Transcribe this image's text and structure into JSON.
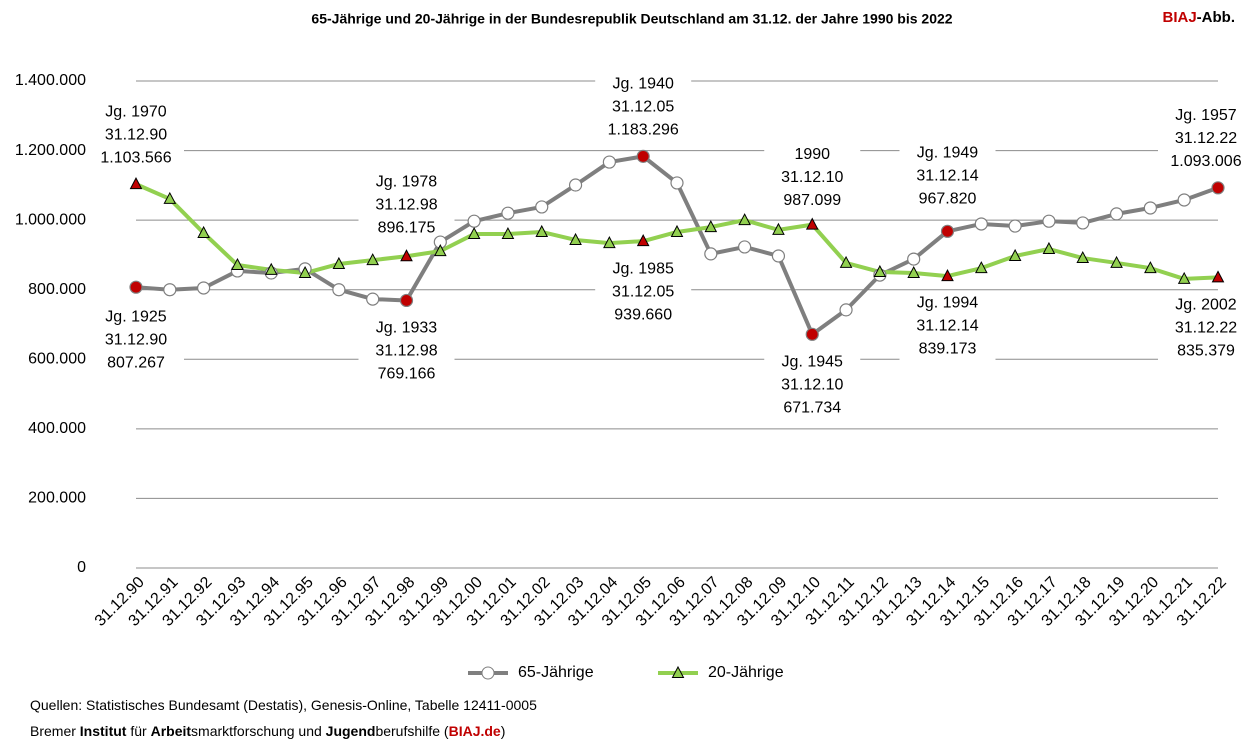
{
  "chart_data": {
    "type": "line",
    "title": "65-Jährige und 20-Jährige in der Bundesrepublik Deutschland am 31.12. der Jahre 1990 bis 2022",
    "logo": [
      {
        "text": "BIAJ",
        "color": "#c00000"
      },
      {
        "text": "-Abb.",
        "color": "#000000"
      }
    ],
    "categories": [
      "31.12.90",
      "31.12.91",
      "31.12.92",
      "31.12.93",
      "31.12.94",
      "31.12.95",
      "31.12.96",
      "31.12.97",
      "31.12.98",
      "31.12.99",
      "31.12.00",
      "31.12.01",
      "31.12.02",
      "31.12.03",
      "31.12.04",
      "31.12.05",
      "31.12.06",
      "31.12.07",
      "31.12.08",
      "31.12.09",
      "31.12.10",
      "31.12.11",
      "31.12.12",
      "31.12.13",
      "31.12.14",
      "31.12.15",
      "31.12.16",
      "31.12.17",
      "31.12.18",
      "31.12.19",
      "31.12.20",
      "31.12.21",
      "31.12.22"
    ],
    "series": [
      {
        "name": "65-Jährige",
        "color": "#7f7f7f",
        "marker": "circle",
        "values": [
          807267,
          800000,
          805000,
          854000,
          848000,
          860000,
          800000,
          773000,
          769166,
          937000,
          997000,
          1020000,
          1038000,
          1101000,
          1167000,
          1183296,
          1107000,
          903000,
          923000,
          897000,
          671734,
          742000,
          842000,
          888000,
          967820,
          989000,
          983000,
          997000,
          992000,
          1018000,
          1035000,
          1058000,
          1093006
        ]
      },
      {
        "name": "20-Jährige",
        "color": "#92d050",
        "marker": "triangle",
        "values": [
          1103566,
          1061000,
          963000,
          871000,
          857000,
          848000,
          874000,
          885000,
          896175,
          911000,
          960000,
          960000,
          966000,
          943000,
          934000,
          939660,
          966000,
          980000,
          1000000,
          972000,
          987099,
          877000,
          851000,
          848000,
          839173,
          862000,
          897000,
          917000,
          891000,
          877000,
          862000,
          831000,
          835379
        ]
      }
    ],
    "highlight_color": "#c00000",
    "annotations": [
      {
        "lines": [
          "Jg. 1970",
          "31.12.90",
          "1.103.566"
        ]
      },
      {
        "lines": [
          "Jg. 1925",
          "31.12.90",
          "807.267"
        ]
      },
      {
        "lines": [
          "Jg. 1978",
          "31.12.98",
          "896.175"
        ]
      },
      {
        "lines": [
          "Jg. 1933",
          "31.12.98",
          "769.166"
        ]
      },
      {
        "lines": [
          "Jg. 1940",
          "31.12.05",
          "1.183.296"
        ]
      },
      {
        "lines": [
          "Jg. 1985",
          "31.12.05",
          "939.660"
        ]
      },
      {
        "lines": [
          "1990",
          "31.12.10",
          "987.099"
        ]
      },
      {
        "lines": [
          "Jg. 1945",
          "31.12.10",
          "671.734"
        ]
      },
      {
        "lines": [
          "Jg. 1949",
          "31.12.14",
          "967.820"
        ]
      },
      {
        "lines": [
          "Jg. 1994",
          "31.12.14",
          "839.173"
        ]
      },
      {
        "lines": [
          "Jg. 1957",
          "31.12.22",
          "1.093.006"
        ]
      },
      {
        "lines": [
          "Jg. 2002",
          "31.12.22",
          "835.379"
        ]
      }
    ],
    "ylim": [
      0,
      1400000
    ],
    "yticks": [
      0,
      {
        "value": 200000,
        "label": "200.000"
      },
      {
        "value": 400000,
        "label": "400.000"
      },
      {
        "value": 600000,
        "label": "600.000"
      },
      {
        "value": 800000,
        "label": "800.000"
      },
      {
        "value": 1000000,
        "label": "1.000.000"
      },
      {
        "value": 1200000,
        "label": "1.200.000"
      },
      {
        "value": 1400000,
        "label": "1.400.000"
      }
    ],
    "grid": true,
    "legend": "bottom",
    "sources": [
      [
        {
          "text": "Quellen: Statistisches Bundesamt (Destatis), Genesis-Online, Tabelle  12411-0005",
          "bold": false
        }
      ],
      [
        {
          "text": "Bremer ",
          "bold": false
        },
        {
          "text": "Institut",
          "bold": true
        },
        {
          "text": " für ",
          "bold": false
        },
        {
          "text": "Arbeit",
          "bold": true
        },
        {
          "text": "smarktforschung und ",
          "bold": false
        },
        {
          "text": "Jugend",
          "bold": true
        },
        {
          "text": "berufshilfe (",
          "bold": false
        },
        {
          "text": "BIAJ.de",
          "bold": true,
          "color": "#c00000"
        },
        {
          "text": ")",
          "bold": false
        }
      ]
    ]
  }
}
